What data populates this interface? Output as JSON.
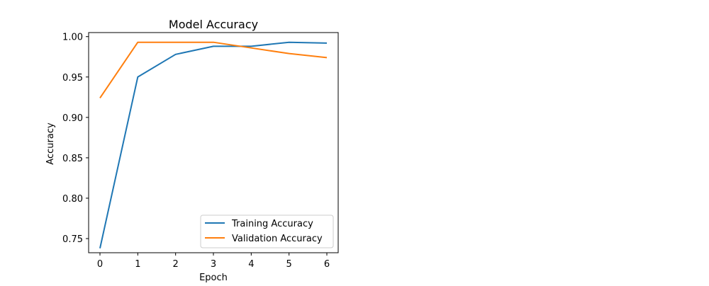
{
  "chart_data": {
    "type": "line",
    "title": "Model Accuracy",
    "xlabel": "Epoch",
    "ylabel": "Accuracy",
    "x": [
      0,
      1,
      2,
      3,
      4,
      5,
      6
    ],
    "xlim": [
      -0.3,
      6.3
    ],
    "ylim": [
      0.7325,
      1.005
    ],
    "xticks": [
      0,
      1,
      2,
      3,
      4,
      5,
      6
    ],
    "yticks": [
      0.75,
      0.8,
      0.85,
      0.9,
      0.95,
      1.0
    ],
    "ytick_labels": [
      "0.75",
      "0.80",
      "0.85",
      "0.90",
      "0.95",
      "1.00"
    ],
    "grid": false,
    "legend_position": "lower-right",
    "series": [
      {
        "name": "Training Accuracy",
        "color": "#1f77b4",
        "values": [
          0.738,
          0.95,
          0.978,
          0.988,
          0.988,
          0.993,
          0.992
        ]
      },
      {
        "name": "Validation Accuracy",
        "color": "#ff7f0e",
        "values": [
          0.924,
          0.993,
          0.993,
          0.993,
          0.986,
          0.979,
          0.974
        ]
      }
    ]
  }
}
